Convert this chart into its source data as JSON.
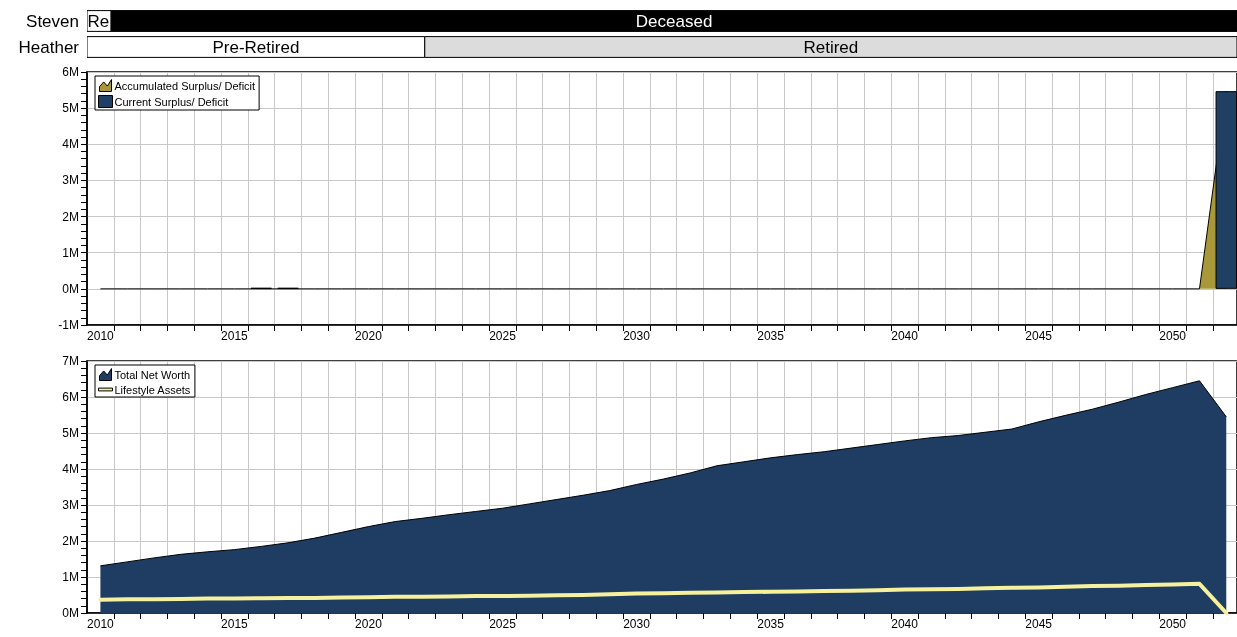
{
  "chart_data": [
    {
      "type": "bar",
      "orientation": "horizontal",
      "categories": [
        "Steven",
        "Heather"
      ],
      "xlim": [
        2009.5,
        2052.4
      ],
      "tick_labels": "y",
      "series": [
        {
          "type": "bar",
          "base": [
            2009.5,
            2009.5
          ],
          "values": [
            0.9,
            12.6
          ],
          "colors": [
            "#ffffff",
            "#ffffff"
          ],
          "value_labels": [
            "Re",
            "Pre-Retired"
          ]
        },
        {
          "type": "bar",
          "base": [
            2010.4,
            2022.1
          ],
          "values": [
            42,
            30.3
          ],
          "colors": [
            "#000000",
            "#dcdcdc"
          ],
          "value_labels": [
            "Deceased",
            "Retired"
          ]
        }
      ]
    },
    {
      "type": "area",
      "legend": "top left",
      "grid": true,
      "xlim": [
        2009.5,
        2052.4
      ],
      "ylim": [
        -1,
        6
      ],
      "x": [
        2010,
        2011,
        2012,
        2013,
        2014,
        2015,
        2016,
        2017,
        2018,
        2019,
        2020,
        2021,
        2022,
        2023,
        2024,
        2025,
        2026,
        2027,
        2028,
        2029,
        2030,
        2031,
        2032,
        2033,
        2034,
        2035,
        2036,
        2037,
        2038,
        2039,
        2040,
        2041,
        2042,
        2043,
        2044,
        2045,
        2046,
        2047,
        2048,
        2049,
        2050,
        2051,
        2052
      ],
      "xticks": [
        2010,
        2015,
        2020,
        2025,
        2030,
        2035,
        2040,
        2045,
        2050,
        {
          "value": 2010.5,
          "label": null
        },
        {
          "value": 2011.5,
          "label": null
        },
        {
          "value": 2012.5,
          "label": null
        },
        {
          "value": 2013.5,
          "label": null
        },
        {
          "value": 2014.5,
          "label": null
        },
        {
          "value": 2015.5,
          "label": null
        },
        {
          "value": 2016.5,
          "label": null
        },
        {
          "value": 2017.5,
          "label": null
        },
        {
          "value": 2018.5,
          "label": null
        },
        {
          "value": 2019.5,
          "label": null
        },
        {
          "value": 2020.5,
          "label": null
        },
        {
          "value": 2021.5,
          "label": null
        },
        {
          "value": 2022.5,
          "label": null
        },
        {
          "value": 2023.5,
          "label": null
        },
        {
          "value": 2024.5,
          "label": null
        },
        {
          "value": 2025.5,
          "label": null
        },
        {
          "value": 2026.5,
          "label": null
        },
        {
          "value": 2027.5,
          "label": null
        },
        {
          "value": 2028.5,
          "label": null
        },
        {
          "value": 2029.5,
          "label": null
        },
        {
          "value": 2030.5,
          "label": null
        },
        {
          "value": 2031.5,
          "label": null
        },
        {
          "value": 2032.5,
          "label": null
        },
        {
          "value": 2033.5,
          "label": null
        },
        {
          "value": 2034.5,
          "label": null
        },
        {
          "value": 2035.5,
          "label": null
        },
        {
          "value": 2036.5,
          "label": null
        },
        {
          "value": 2037.5,
          "label": null
        },
        {
          "value": 2038.5,
          "label": null
        },
        {
          "value": 2039.5,
          "label": null
        },
        {
          "value": 2040.5,
          "label": null
        },
        {
          "value": 2041.5,
          "label": null
        },
        {
          "value": 2042.5,
          "label": null
        },
        {
          "value": 2043.5,
          "label": null
        },
        {
          "value": 2044.5,
          "label": null
        },
        {
          "value": 2045.5,
          "label": null
        },
        {
          "value": 2046.5,
          "label": null
        },
        {
          "value": 2047.5,
          "label": null
        },
        {
          "value": 2048.5,
          "label": null
        },
        {
          "value": 2049.5,
          "label": null
        },
        {
          "value": 2050.5,
          "label": null
        },
        {
          "value": 2051.5,
          "label": null
        }
      ],
      "yticks": [
        {
          "value": -1,
          "label": "-1M"
        },
        {
          "value": -0.8,
          "label": null
        },
        {
          "value": -0.6,
          "label": null
        },
        {
          "value": -0.4,
          "label": null
        },
        {
          "value": -0.2,
          "label": null
        },
        {
          "value": 0,
          "label": "0M"
        },
        {
          "value": 0.2,
          "label": null
        },
        {
          "value": 0.4,
          "label": null
        },
        {
          "value": 0.6,
          "label": null
        },
        {
          "value": 0.8,
          "label": null
        },
        {
          "value": 1,
          "label": "1M"
        },
        {
          "value": 1.2,
          "label": null
        },
        {
          "value": 1.4,
          "label": null
        },
        {
          "value": 1.6,
          "label": null
        },
        {
          "value": 1.8,
          "label": null
        },
        {
          "value": 2,
          "label": "2M"
        },
        {
          "value": 2.2,
          "label": null
        },
        {
          "value": 2.4,
          "label": null
        },
        {
          "value": 2.6,
          "label": null
        },
        {
          "value": 2.8,
          "label": null
        },
        {
          "value": 3,
          "label": "3M"
        },
        {
          "value": 3.2,
          "label": null
        },
        {
          "value": 3.4,
          "label": null
        },
        {
          "value": 3.6,
          "label": null
        },
        {
          "value": 3.8,
          "label": null
        },
        {
          "value": 4,
          "label": "4M"
        },
        {
          "value": 4.2,
          "label": null
        },
        {
          "value": 4.4,
          "label": null
        },
        {
          "value": 4.6,
          "label": null
        },
        {
          "value": 4.8,
          "label": null
        },
        {
          "value": 5,
          "label": "5M"
        },
        {
          "value": 5.2,
          "label": null
        },
        {
          "value": 5.4,
          "label": null
        },
        {
          "value": 5.6,
          "label": null
        },
        {
          "value": 5.8,
          "label": null
        },
        {
          "value": 6,
          "label": "6M"
        }
      ],
      "series": [
        {
          "name": "Accumulated Surplus/ Deficit",
          "type": "area",
          "color": "#a9983a",
          "values": [
            0,
            0,
            0,
            0,
            0,
            0,
            0,
            0,
            0,
            0,
            0,
            0,
            0,
            0,
            0,
            0,
            0,
            0,
            0,
            0,
            0,
            0,
            0,
            0,
            0,
            0,
            0,
            0,
            0,
            0,
            0,
            0,
            0,
            0,
            0,
            0,
            0,
            0,
            0,
            0,
            0,
            0,
            5.47
          ]
        },
        {
          "name": "Current Surplus/ Deficit",
          "type": "bar",
          "color": "#1f3f63",
          "values": [
            0,
            0,
            0,
            0,
            0,
            0,
            0.03,
            0.03,
            0,
            0,
            0,
            0,
            0,
            0,
            0,
            0,
            0,
            0,
            0,
            0,
            0,
            0,
            0,
            0,
            0,
            0,
            0,
            0,
            0,
            0,
            0,
            0,
            0,
            0,
            0,
            0,
            0,
            0,
            0,
            0,
            0,
            0,
            5.47
          ]
        }
      ]
    },
    {
      "type": "area",
      "legend": "top left",
      "grid": true,
      "xlim": [
        2009.5,
        2052.4
      ],
      "ylim": [
        0,
        7
      ],
      "x": [
        2010,
        2011,
        2012,
        2013,
        2014,
        2015,
        2016,
        2017,
        2018,
        2019,
        2020,
        2021,
        2022,
        2023,
        2024,
        2025,
        2026,
        2027,
        2028,
        2029,
        2030,
        2031,
        2032,
        2033,
        2034,
        2035,
        2036,
        2037,
        2038,
        2039,
        2040,
        2041,
        2042,
        2043,
        2044,
        2045,
        2046,
        2047,
        2048,
        2049,
        2050,
        2051,
        2052
      ],
      "xticks": [
        2010,
        2015,
        2020,
        2025,
        2030,
        2035,
        2040,
        2045,
        2050,
        {
          "value": 2010.5,
          "label": null
        },
        {
          "value": 2011.5,
          "label": null
        },
        {
          "value": 2012.5,
          "label": null
        },
        {
          "value": 2013.5,
          "label": null
        },
        {
          "value": 2014.5,
          "label": null
        },
        {
          "value": 2015.5,
          "label": null
        },
        {
          "value": 2016.5,
          "label": null
        },
        {
          "value": 2017.5,
          "label": null
        },
        {
          "value": 2018.5,
          "label": null
        },
        {
          "value": 2019.5,
          "label": null
        },
        {
          "value": 2020.5,
          "label": null
        },
        {
          "value": 2021.5,
          "label": null
        },
        {
          "value": 2022.5,
          "label": null
        },
        {
          "value": 2023.5,
          "label": null
        },
        {
          "value": 2024.5,
          "label": null
        },
        {
          "value": 2025.5,
          "label": null
        },
        {
          "value": 2026.5,
          "label": null
        },
        {
          "value": 2027.5,
          "label": null
        },
        {
          "value": 2028.5,
          "label": null
        },
        {
          "value": 2029.5,
          "label": null
        },
        {
          "value": 2030.5,
          "label": null
        },
        {
          "value": 2031.5,
          "label": null
        },
        {
          "value": 2032.5,
          "label": null
        },
        {
          "value": 2033.5,
          "label": null
        },
        {
          "value": 2034.5,
          "label": null
        },
        {
          "value": 2035.5,
          "label": null
        },
        {
          "value": 2036.5,
          "label": null
        },
        {
          "value": 2037.5,
          "label": null
        },
        {
          "value": 2038.5,
          "label": null
        },
        {
          "value": 2039.5,
          "label": null
        },
        {
          "value": 2040.5,
          "label": null
        },
        {
          "value": 2041.5,
          "label": null
        },
        {
          "value": 2042.5,
          "label": null
        },
        {
          "value": 2043.5,
          "label": null
        },
        {
          "value": 2044.5,
          "label": null
        },
        {
          "value": 2045.5,
          "label": null
        },
        {
          "value": 2046.5,
          "label": null
        },
        {
          "value": 2047.5,
          "label": null
        },
        {
          "value": 2048.5,
          "label": null
        },
        {
          "value": 2049.5,
          "label": null
        },
        {
          "value": 2050.5,
          "label": null
        },
        {
          "value": 2051.5,
          "label": null
        }
      ],
      "yticks": [
        {
          "value": 0,
          "label": "0M"
        },
        {
          "value": 0.2,
          "label": null
        },
        {
          "value": 0.4,
          "label": null
        },
        {
          "value": 0.6,
          "label": null
        },
        {
          "value": 0.8,
          "label": null
        },
        {
          "value": 1,
          "label": "1M"
        },
        {
          "value": 1.2,
          "label": null
        },
        {
          "value": 1.4,
          "label": null
        },
        {
          "value": 1.6,
          "label": null
        },
        {
          "value": 1.8,
          "label": null
        },
        {
          "value": 2,
          "label": "2M"
        },
        {
          "value": 2.2,
          "label": null
        },
        {
          "value": 2.4,
          "label": null
        },
        {
          "value": 2.6,
          "label": null
        },
        {
          "value": 2.8,
          "label": null
        },
        {
          "value": 3,
          "label": "3M"
        },
        {
          "value": 3.2,
          "label": null
        },
        {
          "value": 3.4,
          "label": null
        },
        {
          "value": 3.6,
          "label": null
        },
        {
          "value": 3.8,
          "label": null
        },
        {
          "value": 4,
          "label": "4M"
        },
        {
          "value": 4.2,
          "label": null
        },
        {
          "value": 4.4,
          "label": null
        },
        {
          "value": 4.6,
          "label": null
        },
        {
          "value": 4.8,
          "label": null
        },
        {
          "value": 5,
          "label": "5M"
        },
        {
          "value": 5.2,
          "label": null
        },
        {
          "value": 5.4,
          "label": null
        },
        {
          "value": 5.6,
          "label": null
        },
        {
          "value": 5.8,
          "label": null
        },
        {
          "value": 6,
          "label": "6M"
        },
        {
          "value": 6.2,
          "label": null
        },
        {
          "value": 6.4,
          "label": null
        },
        {
          "value": 6.6,
          "label": null
        },
        {
          "value": 6.8,
          "label": null
        },
        {
          "value": 7,
          "label": "7M"
        }
      ],
      "series": [
        {
          "name": "Total Net Worth",
          "type": "area",
          "color": "#1f3d62",
          "values": [
            1.31,
            1.42,
            1.53,
            1.63,
            1.7,
            1.76,
            1.85,
            1.95,
            2.08,
            2.24,
            2.4,
            2.54,
            2.63,
            2.73,
            2.82,
            2.91,
            3.03,
            3.15,
            3.27,
            3.4,
            3.57,
            3.72,
            3.89,
            4.09,
            4.2,
            4.31,
            4.4,
            4.48,
            4.58,
            4.68,
            4.78,
            4.87,
            4.93,
            5.02,
            5.11,
            5.31,
            5.49,
            5.66,
            5.86,
            6.07,
            6.26,
            6.45,
            5.45
          ]
        },
        {
          "name": "Lifestyle Assets",
          "type": "line",
          "color": "#f7f09c",
          "values": [
            0.37,
            0.38,
            0.38,
            0.39,
            0.4,
            0.4,
            0.41,
            0.42,
            0.42,
            0.43,
            0.44,
            0.45,
            0.45,
            0.46,
            0.47,
            0.47,
            0.48,
            0.49,
            0.5,
            0.52,
            0.54,
            0.55,
            0.56,
            0.57,
            0.58,
            0.59,
            0.6,
            0.61,
            0.62,
            0.63,
            0.65,
            0.66,
            0.67,
            0.69,
            0.7,
            0.71,
            0.73,
            0.75,
            0.76,
            0.78,
            0.79,
            0.81,
            0
          ]
        }
      ]
    }
  ]
}
